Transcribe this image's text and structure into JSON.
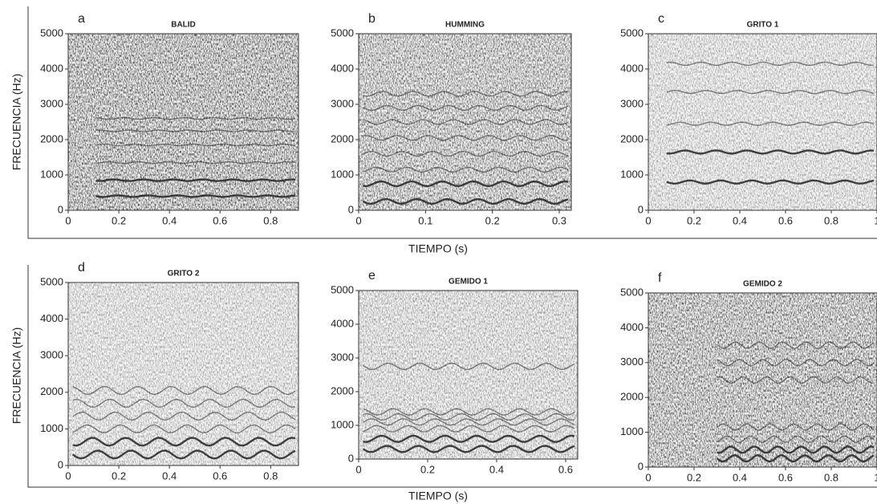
{
  "chart_data": [
    {
      "type": "spectrogram",
      "panel": "a",
      "title": "BALID",
      "xlim": [
        0,
        0.91
      ],
      "xticks": [
        0,
        0.2,
        0.4,
        0.6,
        0.8
      ],
      "ylim": [
        0,
        5000
      ],
      "yticks": [
        0,
        1000,
        2000,
        3000,
        4000,
        5000
      ]
    },
    {
      "type": "spectrogram",
      "panel": "b",
      "title": "HUMMING",
      "xlim": [
        0,
        0.318
      ],
      "xticks": [
        0,
        0.1,
        0.2,
        0.3
      ],
      "ylim": [
        0,
        5000
      ],
      "yticks": [
        0,
        1000,
        2000,
        3000,
        4000,
        5000
      ]
    },
    {
      "type": "spectrogram",
      "panel": "c",
      "title": "GRITO 1",
      "xlim": [
        0,
        1
      ],
      "xticks": [
        0,
        0.2,
        0.4,
        0.6,
        0.8,
        1
      ],
      "ylim": [
        0,
        5000
      ],
      "yticks": [
        0,
        1000,
        2000,
        3000,
        4000,
        5000
      ]
    },
    {
      "type": "spectrogram",
      "panel": "d",
      "title": "GRITO 2",
      "xlim": [
        0,
        0.91
      ],
      "xticks": [
        0,
        0.2,
        0.4,
        0.6,
        0.8
      ],
      "ylim": [
        0,
        5000
      ],
      "yticks": [
        0,
        1000,
        2000,
        3000,
        4000,
        5000
      ]
    },
    {
      "type": "spectrogram",
      "panel": "e",
      "title": "GEMIDO 1",
      "xlim": [
        0,
        0.635
      ],
      "xticks": [
        0,
        0.2,
        0.4,
        0.6
      ],
      "ylim": [
        0,
        5000
      ],
      "yticks": [
        0,
        1000,
        2000,
        3000,
        4000,
        5000
      ]
    },
    {
      "type": "spectrogram",
      "panel": "f",
      "title": "GEMIDO 2",
      "xlim": [
        0,
        1
      ],
      "xticks": [
        0,
        0.2,
        0.4,
        0.6,
        0.8,
        1
      ],
      "ylim": [
        0,
        5000
      ],
      "yticks": [
        0,
        1000,
        2000,
        3000,
        4000,
        5000
      ]
    }
  ],
  "rows": [
    {
      "y_label": "FRECUENCIA (Hz)",
      "x_label": "TIEMPO (s)"
    },
    {
      "y_label": "FRECUENCIA (Hz)",
      "x_label": "TIEMPO (s)"
    }
  ]
}
